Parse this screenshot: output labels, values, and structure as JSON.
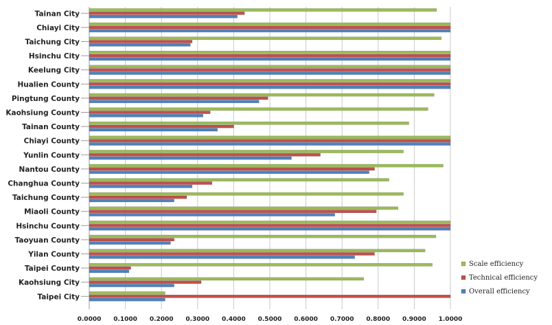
{
  "chart_data": {
    "type": "bar",
    "orientation": "horizontal",
    "categories": [
      "Tainan City",
      "Chiayi City",
      "Taichung City",
      "Hsinchu City",
      "Keelung City",
      "Hualien County",
      "Pingtung County",
      "Kaohsiung County",
      "Tainan County",
      "Chiayi County",
      "Yunlin County",
      "Nantou County",
      "Changhua County",
      "Taichung County",
      "Miaoli County",
      "Hsinchu County",
      "Taoyuan County",
      "Yilan County",
      "Taipei County",
      "Kaohsiung City",
      "Taipei City"
    ],
    "series": [
      {
        "name": "Scale efficiency",
        "color": "#9BBB59",
        "values": [
          0.962,
          1.0,
          0.975,
          1.0,
          1.0,
          1.0,
          0.955,
          0.938,
          0.885,
          1.0,
          0.87,
          0.98,
          0.83,
          0.87,
          0.855,
          1.0,
          0.96,
          0.93,
          0.95,
          0.76,
          0.21
        ]
      },
      {
        "name": "Technical efficiency",
        "color": "#C0504D",
        "values": [
          0.43,
          1.0,
          0.285,
          1.0,
          1.0,
          1.0,
          0.495,
          0.335,
          0.4,
          1.0,
          0.64,
          0.79,
          0.34,
          0.27,
          0.795,
          1.0,
          0.235,
          0.79,
          0.115,
          0.31,
          1.0
        ]
      },
      {
        "name": "Overall efficiency",
        "color": "#4F81BD",
        "values": [
          0.41,
          1.0,
          0.28,
          1.0,
          1.0,
          1.0,
          0.47,
          0.315,
          0.355,
          1.0,
          0.56,
          0.775,
          0.285,
          0.235,
          0.68,
          1.0,
          0.225,
          0.735,
          0.11,
          0.235,
          0.21
        ]
      }
    ],
    "x_ticks": [
      "0.0000",
      "0.1000",
      "0.2000",
      "0.3000",
      "0.4000",
      "0.5000",
      "0.6000",
      "0.7000",
      "0.8000",
      "0.9000",
      "1.0000"
    ],
    "xlim": [
      0,
      1
    ],
    "grid": true,
    "legend_position": "right"
  }
}
